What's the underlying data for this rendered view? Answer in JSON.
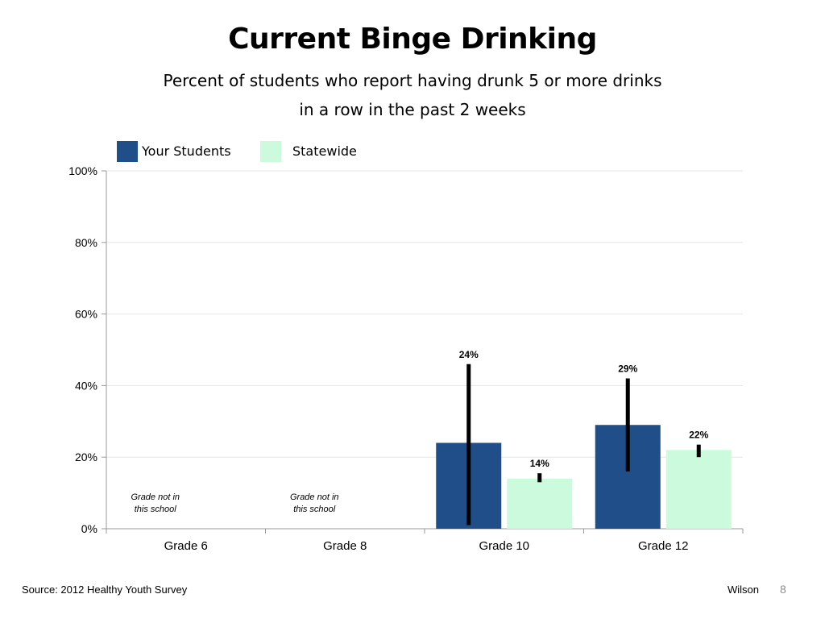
{
  "title": "Current Binge Drinking",
  "subtitle_line1": "Percent of students who report having drunk 5 or more drinks",
  "subtitle_line2": "in a row in the past 2 weeks",
  "footer": {
    "source": "Source: 2012 Healthy Youth Survey",
    "author": "Wilson",
    "page_number": "8"
  },
  "chart_data": {
    "type": "bar",
    "categories": [
      "Grade 6",
      "Grade 8",
      "Grade 10",
      "Grade 12"
    ],
    "series": [
      {
        "name": "Your Students",
        "color": "#1f4e89",
        "values": [
          null,
          null,
          24,
          29
        ],
        "labels": [
          "",
          "",
          "24%",
          "29%"
        ],
        "error_low": [
          null,
          null,
          1,
          16
        ],
        "error_high": [
          null,
          null,
          46,
          42
        ]
      },
      {
        "name": "Statewide",
        "color": "#ccfadc",
        "values": [
          null,
          null,
          14,
          22
        ],
        "labels": [
          "",
          "",
          "14%",
          "22%"
        ],
        "error_low": [
          null,
          null,
          13,
          20
        ],
        "error_high": [
          null,
          null,
          15.5,
          23.5
        ]
      }
    ],
    "ylim": [
      0,
      100
    ],
    "yticks": [
      0,
      20,
      40,
      60,
      80,
      100
    ],
    "ytick_labels": [
      "0%",
      "20%",
      "40%",
      "60%",
      "80%",
      "100%"
    ],
    "annotations": [
      {
        "category": "Grade 6",
        "lines": [
          "Grade not in",
          "this school"
        ]
      },
      {
        "category": "Grade 8",
        "lines": [
          "Grade not in",
          "this school"
        ]
      }
    ],
    "grid": true,
    "legend_position": "top-left"
  }
}
